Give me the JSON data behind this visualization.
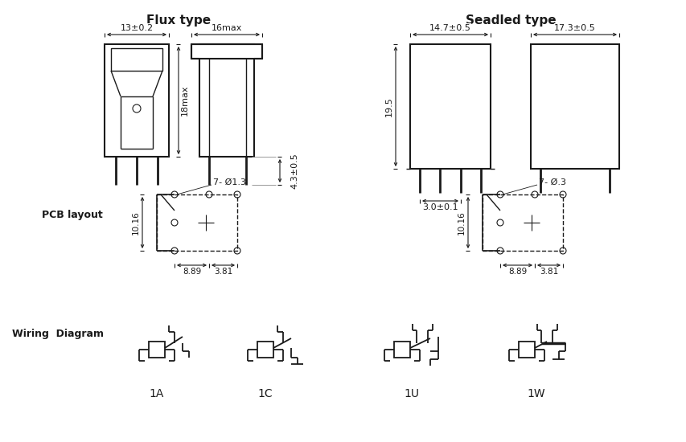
{
  "bg_color": "#ffffff",
  "line_color": "#1a1a1a",
  "flux_type_label": "Flux type",
  "sealed_type_label": "Seadled type",
  "pcb_layout_label": "PCB layout",
  "wiring_diagram_label": "Wiring  Diagram",
  "flux_dims": {
    "width_label": "13±0.2",
    "width2_label": "16max",
    "height_label": "18max",
    "pin_label": "4.3±0.5"
  },
  "sealed_dims": {
    "width_label": "14.7±0.5",
    "width2_label": "17.3±0.5",
    "height_label": "19.5",
    "pin_label": "3.0±0.1"
  },
  "pcb_dims": {
    "hole_label": "7- Ø1.3",
    "hole_label2": "7- Ø.3",
    "width_label": "8.89",
    "width2_label": "3.81",
    "height_label": "10.16"
  },
  "wiring_labels": [
    "1A",
    "1C",
    "1U",
    "1W"
  ]
}
